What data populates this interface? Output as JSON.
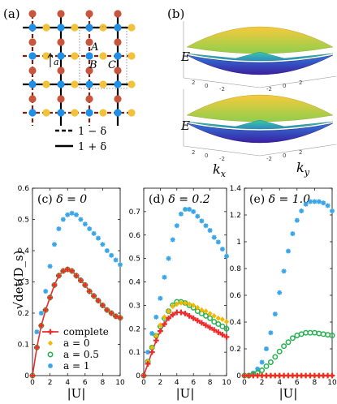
{
  "panel_a": {
    "label": "(a)",
    "site_labels": [
      "A",
      "B",
      "C"
    ],
    "bond_label": "a",
    "legend": [
      "1 − δ",
      "1 + δ"
    ],
    "colors": {
      "site_A": "#c8553d",
      "site_B": "#1e90e8",
      "site_C": "#f2c23a",
      "dashed_bond": "#7a1f10",
      "solid_bond": "#000000"
    }
  },
  "panel_b": {
    "label": "(b)",
    "e_label": "E",
    "kx_label": "k",
    "kx_sub": "x",
    "ky_label": "k",
    "ky_sub": "y",
    "tick_labels_top": [
      "2",
      "0",
      "-2",
      "-2",
      "0",
      "2"
    ],
    "tick_labels_bottom": [
      "2",
      "0",
      "-2",
      "-2",
      "0",
      "2"
    ],
    "colors": {
      "top_band": "#f2c23a",
      "mid_band": "#2bb6a3",
      "bottom_band": "#3a2fb0"
    }
  },
  "y_axis_label": "√det(D_s)",
  "x_axis_label": "|U|",
  "legend": {
    "entries": [
      "complete",
      "a = 0",
      "a = 0.5",
      "a = 1"
    ],
    "symbols": [
      "+",
      "◆",
      "○",
      "✱"
    ]
  },
  "colors": {
    "complete": "#ee2a2a",
    "a0": "#f5b800",
    "a05": "#22b14c",
    "a1": "#3aa6e8"
  },
  "chart_data": [
    {
      "type": "scatter",
      "title": "(c) δ = 0",
      "title_parts": {
        "panel": "(c)",
        "param": "δ = 0"
      },
      "xlim": [
        0,
        10
      ],
      "ylim": [
        0,
        0.6
      ],
      "xticks": [
        0,
        2,
        4,
        6,
        8,
        10
      ],
      "yticks": [
        0,
        0.1,
        0.2,
        0.3,
        0.4,
        0.5,
        0.6
      ],
      "ytick_labels": [
        "0",
        "0.1",
        "0.2",
        "0.3",
        "0.4",
        "0.5",
        "0.6"
      ],
      "xtick_labels": [
        "0",
        "2",
        "4",
        "6",
        "8",
        "10"
      ],
      "x": [
        0,
        0.5,
        1,
        1.5,
        2,
        2.5,
        3,
        3.5,
        4,
        4.5,
        5,
        5.5,
        6,
        6.5,
        7,
        7.5,
        8,
        8.5,
        9,
        9.5,
        10
      ],
      "series": [
        {
          "name": "complete",
          "values": [
            0,
            0.09,
            0.16,
            0.21,
            0.25,
            0.29,
            0.32,
            0.335,
            0.34,
            0.335,
            0.32,
            0.305,
            0.29,
            0.27,
            0.255,
            0.24,
            0.225,
            0.21,
            0.2,
            0.19,
            0.185
          ]
        },
        {
          "name": "a = 0",
          "values": [
            0,
            0.09,
            0.16,
            0.21,
            0.25,
            0.29,
            0.32,
            0.335,
            0.34,
            0.335,
            0.32,
            0.305,
            0.29,
            0.27,
            0.255,
            0.24,
            0.225,
            0.21,
            0.2,
            0.19,
            0.185
          ]
        },
        {
          "name": "a = 0.5",
          "values": [
            0,
            0.09,
            0.16,
            0.21,
            0.25,
            0.29,
            0.32,
            0.335,
            0.34,
            0.335,
            0.32,
            0.305,
            0.29,
            0.27,
            0.255,
            0.24,
            0.225,
            0.21,
            0.2,
            0.19,
            0.185
          ]
        },
        {
          "name": "a = 1",
          "values": [
            0,
            0.14,
            0.2,
            0.27,
            0.35,
            0.42,
            0.47,
            0.5,
            0.515,
            0.52,
            0.515,
            0.5,
            0.485,
            0.47,
            0.455,
            0.44,
            0.42,
            0.4,
            0.385,
            0.37,
            0.355
          ]
        }
      ]
    },
    {
      "type": "scatter",
      "title": "(d) δ = 0.2",
      "title_parts": {
        "panel": "(d)",
        "param": "δ = 0.2"
      },
      "xlim": [
        0,
        10
      ],
      "ylim": [
        0,
        0.8
      ],
      "xticks": [
        0,
        2,
        4,
        6,
        8,
        10
      ],
      "yticks": [
        0,
        0.1,
        0.2,
        0.3,
        0.4,
        0.5,
        0.6,
        0.7
      ],
      "ytick_labels": [
        "0",
        "0.1",
        "0.2",
        "0.3",
        "0.4",
        "0.5",
        "0.6",
        "0.7"
      ],
      "xtick_labels": [
        "0",
        "2",
        "4",
        "6",
        "8",
        "10"
      ],
      "x": [
        0,
        0.5,
        1,
        1.5,
        2,
        2.5,
        3,
        3.5,
        4,
        4.5,
        5,
        5.5,
        6,
        6.5,
        7,
        7.5,
        8,
        8.5,
        9,
        9.5,
        10
      ],
      "series": [
        {
          "name": "complete",
          "values": [
            0,
            0.05,
            0.1,
            0.15,
            0.19,
            0.22,
            0.245,
            0.26,
            0.27,
            0.27,
            0.265,
            0.255,
            0.245,
            0.235,
            0.225,
            0.215,
            0.205,
            0.195,
            0.185,
            0.175,
            0.165
          ]
        },
        {
          "name": "a = 0",
          "values": [
            0,
            0.06,
            0.12,
            0.17,
            0.215,
            0.25,
            0.275,
            0.295,
            0.305,
            0.31,
            0.31,
            0.305,
            0.3,
            0.29,
            0.28,
            0.275,
            0.265,
            0.255,
            0.245,
            0.24,
            0.23
          ]
        },
        {
          "name": "a = 0.5",
          "values": [
            0,
            0.06,
            0.12,
            0.17,
            0.21,
            0.245,
            0.275,
            0.3,
            0.315,
            0.315,
            0.31,
            0.3,
            0.29,
            0.275,
            0.265,
            0.255,
            0.245,
            0.23,
            0.22,
            0.21,
            0.2
          ]
        },
        {
          "name": "a = 1",
          "values": [
            0,
            0.1,
            0.18,
            0.25,
            0.33,
            0.42,
            0.5,
            0.58,
            0.64,
            0.69,
            0.71,
            0.71,
            0.7,
            0.68,
            0.66,
            0.64,
            0.62,
            0.59,
            0.57,
            0.54,
            0.51
          ]
        }
      ]
    },
    {
      "type": "scatter",
      "title": "(e) δ = 1.0",
      "title_parts": {
        "panel": "(e)",
        "param": "δ = 1.0"
      },
      "xlim": [
        0,
        10
      ],
      "ylim": [
        0,
        1.4
      ],
      "xticks": [
        0,
        2,
        4,
        6,
        8,
        10
      ],
      "yticks": [
        0,
        0.2,
        0.4,
        0.6,
        0.8,
        1.0,
        1.2,
        1.4
      ],
      "ytick_labels": [
        "0",
        "0.2",
        "0.4",
        "0.6",
        "0.8",
        "1",
        "1.2",
        "1.4"
      ],
      "xtick_labels": [
        "0",
        "2",
        "4",
        "6",
        "8",
        "10"
      ],
      "x": [
        0,
        0.5,
        1,
        1.5,
        2,
        2.5,
        3,
        3.5,
        4,
        4.5,
        5,
        5.5,
        6,
        6.5,
        7,
        7.5,
        8,
        8.5,
        9,
        9.5,
        10
      ],
      "series": [
        {
          "name": "complete",
          "values": [
            0,
            0,
            0,
            0,
            0,
            0,
            0,
            0,
            0,
            0,
            0,
            0,
            0,
            0,
            0,
            0,
            0,
            0,
            0,
            0,
            0
          ]
        },
        {
          "name": "a = 0",
          "values": [
            0,
            0,
            0,
            0,
            0,
            0,
            0,
            0,
            0,
            0,
            0,
            0,
            0,
            0,
            0,
            0,
            0,
            0,
            0,
            0,
            0
          ]
        },
        {
          "name": "a = 0.5",
          "values": [
            0,
            0,
            0.01,
            0.02,
            0.04,
            0.07,
            0.1,
            0.14,
            0.18,
            0.22,
            0.25,
            0.28,
            0.3,
            0.31,
            0.32,
            0.32,
            0.32,
            0.315,
            0.31,
            0.305,
            0.3
          ]
        },
        {
          "name": "a = 1",
          "values": [
            0,
            0,
            0.02,
            0.05,
            0.1,
            0.2,
            0.32,
            0.46,
            0.62,
            0.78,
            0.93,
            1.06,
            1.16,
            1.23,
            1.28,
            1.3,
            1.3,
            1.3,
            1.29,
            1.27,
            1.23
          ]
        }
      ]
    }
  ]
}
